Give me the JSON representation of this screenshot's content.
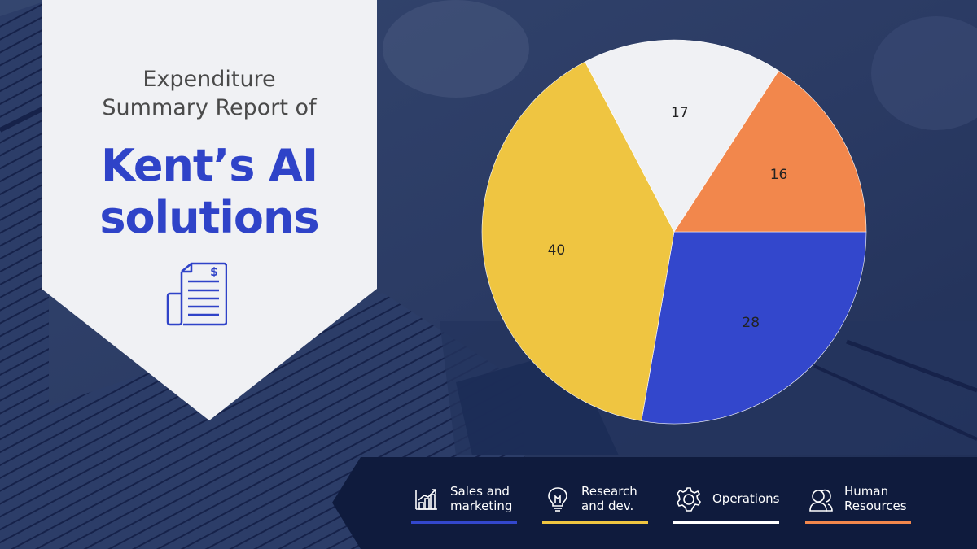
{
  "header": {
    "subtitle": "Expenditure\nSummary Report of",
    "subtitle_line1": "Expenditure",
    "subtitle_line2": "Summary Report of",
    "title_line1": "Kent’s AI",
    "title_line2": "solutions",
    "icon": "invoice-document-dollar-icon"
  },
  "colors": {
    "title_blue": "#2f43c8",
    "banner_bg": "#f0f1f4",
    "legend_bg": "#0f1b3d",
    "sales": "#3347cc",
    "research": "#efc541",
    "operations": "#f0f1f4",
    "hr": "#f2874c"
  },
  "legend": [
    {
      "label": "Sales and\nmarketing",
      "icon": "bar-chart-growth-icon",
      "color": "#3347cc"
    },
    {
      "label": "Research\nand dev.",
      "icon": "lightbulb-icon",
      "color": "#efc541"
    },
    {
      "label": "Operations",
      "icon": "gear-icon",
      "color": "#ffffff"
    },
    {
      "label": "Human\nResources",
      "icon": "people-icon",
      "color": "#f2874c"
    }
  ],
  "chart_data": {
    "type": "pie",
    "title": "Expenditure Summary Report of Kent’s AI solutions",
    "categories": [
      "Sales and marketing",
      "Research and dev.",
      "Operations",
      "Human Resources"
    ],
    "values": [
      28,
      40,
      17,
      16
    ],
    "colors": [
      "#3347cc",
      "#efc541",
      "#f0f1f4",
      "#f2874c"
    ],
    "data_labels": [
      "28",
      "40",
      "17",
      "16"
    ],
    "start_angle": "3 o'clock, clockwise",
    "legend_position": "bottom"
  }
}
